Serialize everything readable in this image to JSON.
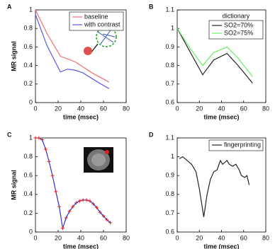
{
  "chart_data": [
    {
      "type": "line",
      "panel_label": "A",
      "xlabel": "time (msec)",
      "ylabel": "MR signal",
      "xlim": [
        0,
        80
      ],
      "xticks": [
        0,
        20,
        40,
        60,
        80
      ],
      "ylim": [
        0,
        1
      ],
      "yticks": [
        0,
        0.2,
        0.4,
        0.6,
        0.8,
        1
      ],
      "legend": "upper right",
      "series": [
        {
          "name": "baseline",
          "color": "#f07070",
          "x": [
            0,
            10,
            22,
            35,
            50,
            65
          ],
          "values": [
            1,
            0.75,
            0.5,
            0.44,
            0.32,
            0.22
          ]
        },
        {
          "name": "with contrast",
          "color": "#5a5ae6",
          "x": [
            0,
            10,
            22,
            28,
            35,
            42,
            55,
            65
          ],
          "values": [
            0.95,
            0.62,
            0.33,
            0.36,
            0.35,
            0.32,
            0.22,
            0.15
          ]
        }
      ]
    },
    {
      "type": "line",
      "panel_label": "B",
      "xlabel": "time (msec)",
      "xlim": [
        0,
        80
      ],
      "xticks": [
        0,
        20,
        40,
        60,
        80
      ],
      "ylim": [
        0.6,
        1.1
      ],
      "yticks": [
        0.6,
        0.7,
        0.8,
        0.9,
        1,
        1.1
      ],
      "legend": "upper right",
      "legend_title": "dictionary",
      "series": [
        {
          "name": "SO2=70%",
          "color": "#222222",
          "x": [
            0,
            12,
            23,
            33,
            45,
            55,
            68
          ],
          "values": [
            1,
            0.87,
            0.75,
            0.83,
            0.865,
            0.8,
            0.705
          ]
        },
        {
          "name": "SO2=75%",
          "color": "#66ee66",
          "x": [
            0,
            12,
            23,
            33,
            45,
            55,
            68
          ],
          "values": [
            1,
            0.89,
            0.8,
            0.87,
            0.9,
            0.84,
            0.74
          ]
        }
      ]
    },
    {
      "type": "line",
      "panel_label": "C",
      "xlabel": "time (msec)",
      "ylabel": "MR signal",
      "xlim": [
        0,
        80
      ],
      "xticks": [
        0,
        20,
        40,
        60,
        80
      ],
      "ylim": [
        0,
        1
      ],
      "yticks": [
        0,
        0.2,
        0.4,
        0.6,
        0.8,
        1
      ],
      "marker_color": "#e02020",
      "series": [
        {
          "color": "#3030d0",
          "x": [
            0,
            3,
            6,
            9,
            12,
            15,
            18,
            21,
            24,
            27,
            30,
            33,
            36,
            39,
            42,
            45,
            48,
            51,
            54,
            57,
            60,
            63,
            66
          ],
          "values": [
            1,
            1,
            0.98,
            0.88,
            0.75,
            0.6,
            0.43,
            0.27,
            0.04,
            0.15,
            0.22,
            0.27,
            0.31,
            0.33,
            0.34,
            0.34,
            0.33,
            0.3,
            0.26,
            0.21,
            0.17,
            0.13,
            0.1
          ]
        }
      ]
    },
    {
      "type": "line",
      "panel_label": "D",
      "xlabel": "time (msec)",
      "xlim": [
        0,
        80
      ],
      "xticks": [
        0,
        20,
        40,
        60,
        80
      ],
      "ylim": [
        0.6,
        1.1
      ],
      "yticks": [
        0.6,
        0.7,
        0.8,
        0.9,
        1,
        1.1
      ],
      "legend": "upper right",
      "series": [
        {
          "name": "fingerprinting",
          "color": "#222222",
          "x": [
            2,
            5,
            9,
            13,
            17,
            20,
            24,
            27,
            30,
            33,
            36,
            39,
            41,
            43,
            45,
            47,
            50,
            53,
            56,
            58,
            61,
            63,
            65
          ],
          "values": [
            0.99,
            1,
            0.98,
            0.96,
            0.92,
            0.83,
            0.68,
            0.8,
            0.88,
            0.92,
            0.93,
            0.98,
            0.96,
            0.97,
            0.98,
            0.96,
            0.95,
            0.96,
            0.93,
            0.9,
            0.89,
            0.9,
            0.85
          ]
        }
      ]
    }
  ]
}
